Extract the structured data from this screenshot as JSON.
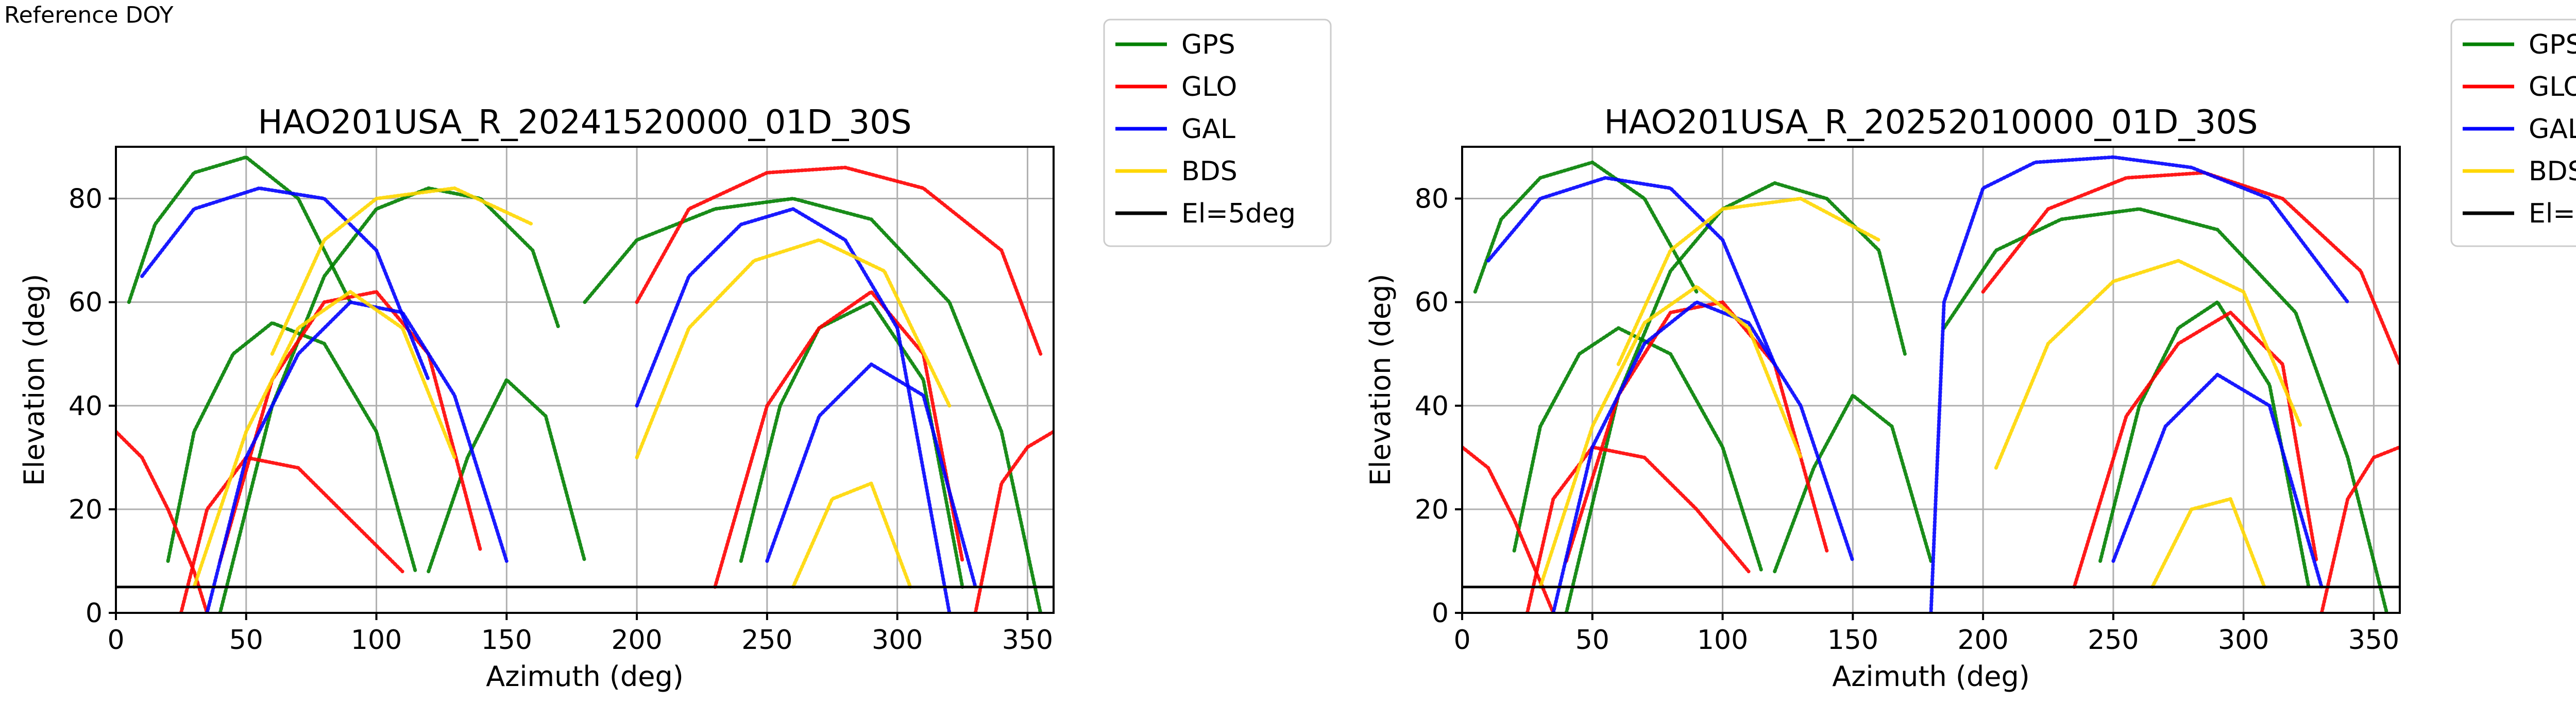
{
  "page": {
    "corner_label": "Reference DOY"
  },
  "legend": {
    "entries": [
      {
        "label": "GPS",
        "color": "#008000"
      },
      {
        "label": "GLO",
        "color": "#ff0000"
      },
      {
        "label": "GAL",
        "color": "#0000ff"
      },
      {
        "label": "BDS",
        "color": "#ffd700"
      },
      {
        "label": "El=5deg",
        "color": "#000000"
      }
    ]
  },
  "chart_data": [
    {
      "type": "line",
      "title": "HAO201USA_R_20241520000_01D_30S",
      "xlabel": "Azimuth (deg)",
      "ylabel": "Elevation (deg)",
      "xlim": [
        0,
        360
      ],
      "ylim": [
        0,
        90
      ],
      "xticks": [
        0,
        50,
        100,
        150,
        200,
        250,
        300,
        350
      ],
      "yticks": [
        0,
        20,
        40,
        60,
        80
      ],
      "grid": true,
      "legend_position": "outside-top-right",
      "reference_line": {
        "name": "El=5deg",
        "y": 5
      },
      "series": [
        {
          "name": "GPS",
          "color": "#008000",
          "arcs": [
            {
              "x": [
                40,
                60,
                80,
                100,
                120,
                140,
                160,
                170
              ],
              "y": [
                0,
                40,
                65,
                78,
                82,
                80,
                70,
                55
              ]
            },
            {
              "x": [
                180,
                200,
                230,
                260,
                290,
                320,
                340,
                355
              ],
              "y": [
                60,
                72,
                78,
                80,
                76,
                60,
                35,
                0
              ]
            },
            {
              "x": [
                20,
                30,
                45,
                60,
                80,
                100,
                115
              ],
              "y": [
                10,
                35,
                50,
                56,
                52,
                35,
                8
              ]
            },
            {
              "x": [
                240,
                255,
                270,
                290,
                310,
                325
              ],
              "y": [
                10,
                40,
                55,
                60,
                45,
                5
              ]
            },
            {
              "x": [
                5,
                15,
                30,
                50,
                70,
                90
              ],
              "y": [
                60,
                75,
                85,
                88,
                80,
                60
              ]
            },
            {
              "x": [
                120,
                135,
                150,
                165,
                180
              ],
              "y": [
                8,
                30,
                45,
                38,
                10
              ]
            }
          ]
        },
        {
          "name": "GLO",
          "color": "#ff0000",
          "arcs": [
            {
              "x": [
                0,
                10,
                20,
                30,
                35
              ],
              "y": [
                35,
                30,
                20,
                8,
                0
              ]
            },
            {
              "x": [
                25,
                35,
                50,
                70,
                90,
                110
              ],
              "y": [
                0,
                20,
                30,
                28,
                18,
                8
              ]
            },
            {
              "x": [
                330,
                340,
                350,
                360
              ],
              "y": [
                0,
                25,
                32,
                35
              ]
            },
            {
              "x": [
                230,
                250,
                270,
                290,
                310,
                325
              ],
              "y": [
                5,
                40,
                55,
                62,
                50,
                10
              ]
            },
            {
              "x": [
                40,
                60,
                80,
                100,
                120,
                140
              ],
              "y": [
                10,
                45,
                60,
                62,
                50,
                12
              ]
            },
            {
              "x": [
                200,
                220,
                250,
                280,
                310,
                340,
                355
              ],
              "y": [
                60,
                78,
                85,
                86,
                82,
                70,
                50
              ]
            }
          ]
        },
        {
          "name": "GAL",
          "color": "#0000ff",
          "arcs": [
            {
              "x": [
                35,
                50,
                70,
                90,
                110,
                130,
                150
              ],
              "y": [
                0,
                30,
                50,
                60,
                58,
                42,
                10
              ]
            },
            {
              "x": [
                200,
                220,
                240,
                260,
                280,
                300,
                320
              ],
              "y": [
                40,
                65,
                75,
                78,
                72,
                55,
                0
              ]
            },
            {
              "x": [
                10,
                30,
                55,
                80,
                100,
                120
              ],
              "y": [
                65,
                78,
                82,
                80,
                70,
                45
              ]
            },
            {
              "x": [
                250,
                270,
                290,
                310,
                330
              ],
              "y": [
                10,
                38,
                48,
                42,
                5
              ]
            }
          ]
        },
        {
          "name": "BDS",
          "color": "#ffd700",
          "arcs": [
            {
              "x": [
                30,
                50,
                70,
                90,
                110,
                130
              ],
              "y": [
                5,
                35,
                55,
                62,
                55,
                30
              ]
            },
            {
              "x": [
                200,
                220,
                245,
                270,
                295,
                320
              ],
              "y": [
                30,
                55,
                68,
                72,
                66,
                40
              ]
            },
            {
              "x": [
                60,
                80,
                100,
                130,
                160
              ],
              "y": [
                50,
                72,
                80,
                82,
                75
              ]
            },
            {
              "x": [
                260,
                275,
                290,
                305
              ],
              "y": [
                5,
                22,
                25,
                5
              ]
            }
          ]
        }
      ]
    },
    {
      "type": "line",
      "title": "HAO201USA_R_20252010000_01D_30S",
      "xlabel": "Azimuth (deg)",
      "ylabel": "Elevation (deg)",
      "xlim": [
        0,
        360
      ],
      "ylim": [
        0,
        90
      ],
      "xticks": [
        0,
        50,
        100,
        150,
        200,
        250,
        300,
        350
      ],
      "yticks": [
        0,
        20,
        40,
        60,
        80
      ],
      "grid": true,
      "legend_position": "outside-top-right",
      "reference_line": {
        "name": "El=5deg",
        "y": 5
      },
      "series": [
        {
          "name": "GPS",
          "color": "#008000",
          "arcs": [
            {
              "x": [
                40,
                60,
                80,
                100,
                120,
                140,
                160,
                170
              ],
              "y": [
                0,
                42,
                66,
                78,
                83,
                80,
                70,
                50
              ]
            },
            {
              "x": [
                185,
                205,
                230,
                260,
                290,
                320,
                340,
                355
              ],
              "y": [
                55,
                70,
                76,
                78,
                74,
                58,
                30,
                0
              ]
            },
            {
              "x": [
                20,
                30,
                45,
                60,
                80,
                100,
                115
              ],
              "y": [
                12,
                36,
                50,
                55,
                50,
                32,
                8
              ]
            },
            {
              "x": [
                245,
                260,
                275,
                290,
                310,
                325
              ],
              "y": [
                10,
                40,
                55,
                60,
                44,
                5
              ]
            },
            {
              "x": [
                5,
                15,
                30,
                50,
                70,
                90
              ],
              "y": [
                62,
                76,
                84,
                87,
                80,
                62
              ]
            },
            {
              "x": [
                120,
                135,
                150,
                165,
                180
              ],
              "y": [
                8,
                28,
                42,
                36,
                10
              ]
            }
          ]
        },
        {
          "name": "GLO",
          "color": "#ff0000",
          "arcs": [
            {
              "x": [
                0,
                10,
                20,
                30,
                35
              ],
              "y": [
                32,
                28,
                18,
                6,
                0
              ]
            },
            {
              "x": [
                25,
                35,
                50,
                70,
                90,
                110
              ],
              "y": [
                0,
                22,
                32,
                30,
                20,
                8
              ]
            },
            {
              "x": [
                330,
                340,
                350,
                360
              ],
              "y": [
                0,
                22,
                30,
                32
              ]
            },
            {
              "x": [
                235,
                255,
                275,
                295,
                315,
                328
              ],
              "y": [
                5,
                38,
                52,
                58,
                48,
                10
              ]
            },
            {
              "x": [
                40,
                60,
                80,
                100,
                120,
                140
              ],
              "y": [
                10,
                42,
                58,
                60,
                48,
                12
              ]
            },
            {
              "x": [
                200,
                225,
                255,
                285,
                315,
                345,
                360
              ],
              "y": [
                62,
                78,
                84,
                85,
                80,
                66,
                48
              ]
            }
          ]
        },
        {
          "name": "GAL",
          "color": "#0000ff",
          "arcs": [
            {
              "x": [
                35,
                50,
                70,
                90,
                110,
                130,
                150
              ],
              "y": [
                0,
                32,
                52,
                60,
                56,
                40,
                10
              ]
            },
            {
              "x": [
                180,
                185,
                200,
                220,
                250,
                280,
                310,
                340
              ],
              "y": [
                0,
                60,
                82,
                87,
                88,
                86,
                80,
                60
              ]
            },
            {
              "x": [
                10,
                30,
                55,
                80,
                100,
                120
              ],
              "y": [
                68,
                80,
                84,
                82,
                72,
                48
              ]
            },
            {
              "x": [
                250,
                270,
                290,
                310,
                330
              ],
              "y": [
                10,
                36,
                46,
                40,
                5
              ]
            }
          ]
        },
        {
          "name": "BDS",
          "color": "#ffd700",
          "arcs": [
            {
              "x": [
                30,
                50,
                70,
                90,
                110,
                130
              ],
              "y": [
                5,
                36,
                56,
                63,
                55,
                30
              ]
            },
            {
              "x": [
                205,
                225,
                250,
                275,
                300,
                322
              ],
              "y": [
                28,
                52,
                64,
                68,
                62,
                36
              ]
            },
            {
              "x": [
                60,
                80,
                100,
                130,
                160
              ],
              "y": [
                48,
                70,
                78,
                80,
                72
              ]
            },
            {
              "x": [
                265,
                280,
                295,
                308
              ],
              "y": [
                5,
                20,
                22,
                5
              ]
            }
          ]
        }
      ]
    }
  ]
}
